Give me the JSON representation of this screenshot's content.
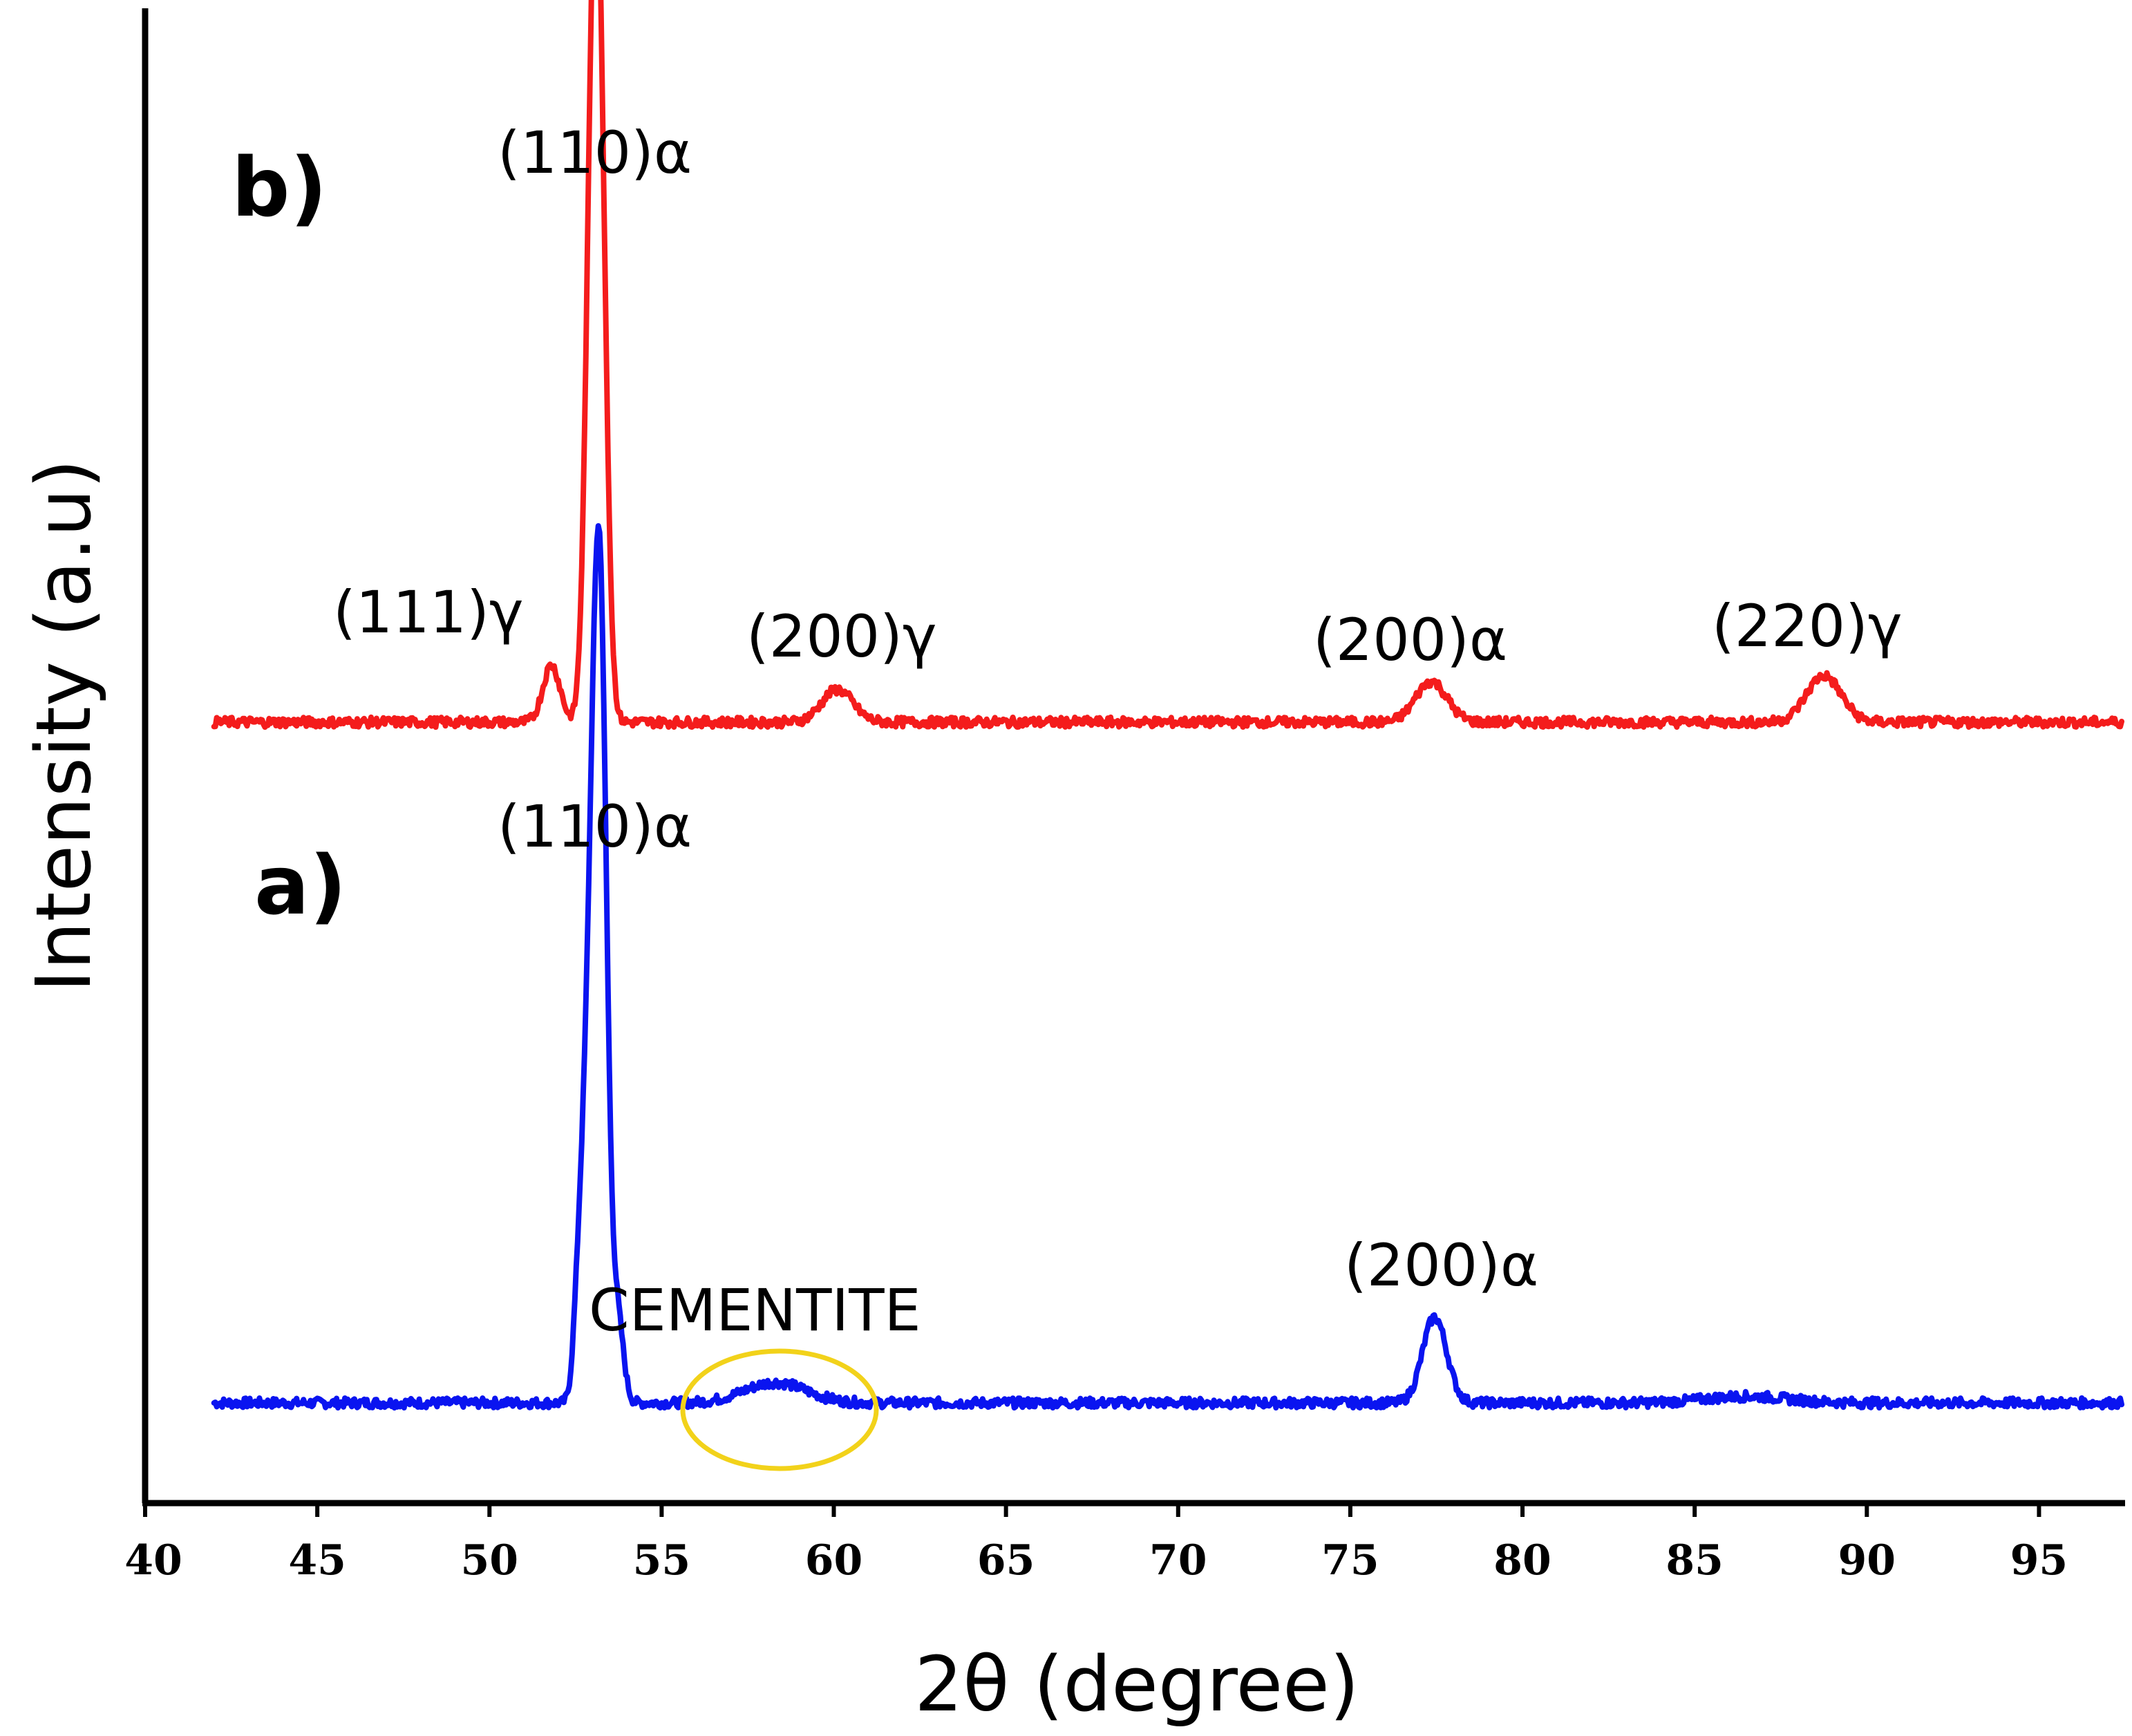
{
  "chart_data": {
    "type": "line",
    "xlabel": "2θ (degree)",
    "ylabel": "Intensity (a.u)",
    "xlim": [
      40,
      97.5
    ],
    "x_ticks": [
      40,
      45,
      50,
      55,
      60,
      65,
      70,
      75,
      80,
      85,
      90,
      95
    ],
    "y_ticks": [],
    "grid": false,
    "legend": "none",
    "series": [
      {
        "panel_label": "a)",
        "color": "#0a14f0",
        "baseline": 0.0,
        "noise": 0.012,
        "peaks": [
          {
            "x": 52.6,
            "height": 0.12,
            "width": 0.15
          },
          {
            "x": 53.0,
            "height": 0.62,
            "width": 0.22
          },
          {
            "x": 53.25,
            "height": 0.68,
            "width": 0.18
          },
          {
            "x": 53.7,
            "height": 0.11,
            "width": 0.18
          },
          {
            "x": 58.3,
            "height": 0.025,
            "width": 0.9
          },
          {
            "x": 77.45,
            "height": 0.105,
            "width": 0.35
          },
          {
            "x": 86.5,
            "height": 0.008,
            "width": 1.2
          }
        ]
      },
      {
        "panel_label": "b)",
        "color": "#f41c1c",
        "baseline": 0.0,
        "noise": 0.012,
        "peaks": [
          {
            "x": 51.8,
            "height": 0.07,
            "width": 0.25
          },
          {
            "x": 53.0,
            "height": 0.62,
            "width": 0.2
          },
          {
            "x": 53.2,
            "height": 0.58,
            "width": 0.2
          },
          {
            "x": 60.1,
            "height": 0.04,
            "width": 0.45
          },
          {
            "x": 77.35,
            "height": 0.05,
            "width": 0.45
          },
          {
            "x": 88.75,
            "height": 0.057,
            "width": 0.5
          }
        ]
      }
    ],
    "annotations": [
      {
        "panel": "b)",
        "text": "(110)α"
      },
      {
        "panel": "b)",
        "text": "(111)γ"
      },
      {
        "panel": "b)",
        "text": "(200)γ"
      },
      {
        "panel": "b)",
        "text": "(200)α"
      },
      {
        "panel": "b)",
        "text": "(220)γ"
      },
      {
        "panel": "a)",
        "text": "(110)α"
      },
      {
        "panel": "a)",
        "text": "(200)α"
      },
      {
        "panel": "a)",
        "text": "CEMENTITE"
      }
    ],
    "highlight": {
      "label": "CEMENTITE",
      "x_range": [
        55.5,
        61.2
      ],
      "color": "#f2d21a"
    }
  }
}
